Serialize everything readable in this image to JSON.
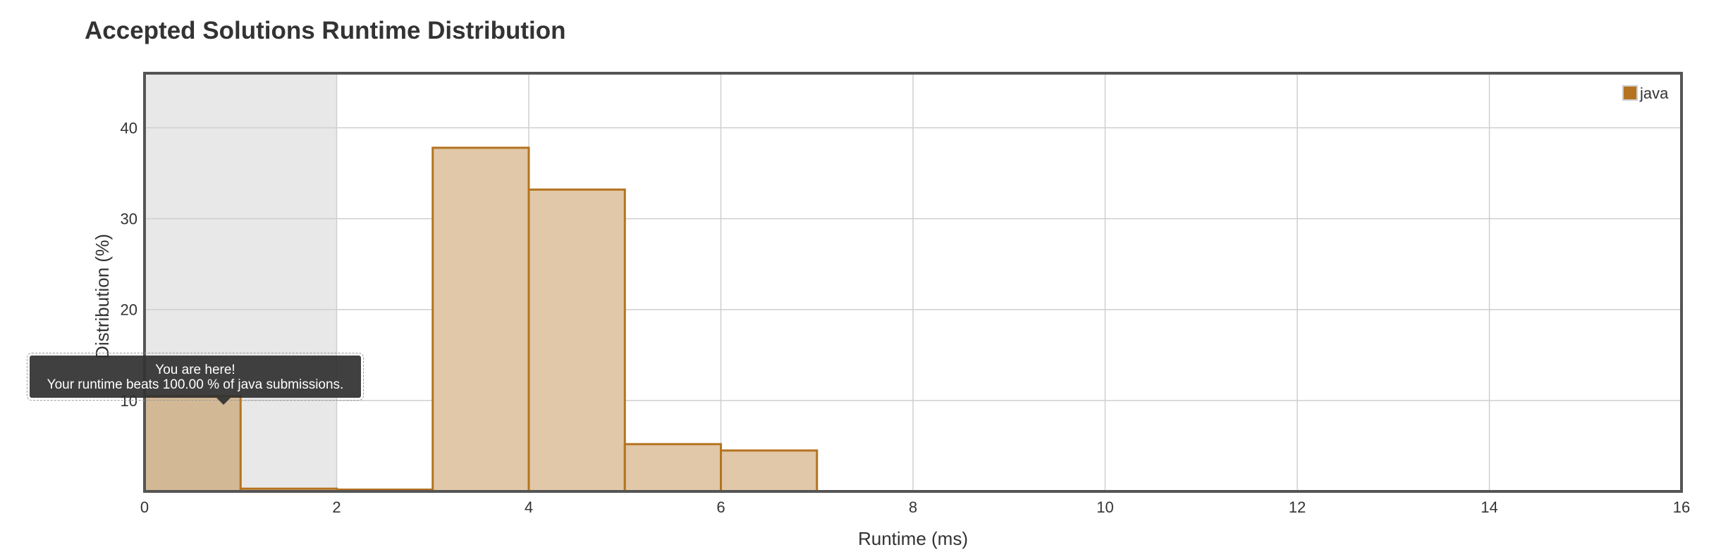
{
  "page": {
    "title": "Accepted Solutions Runtime Distribution"
  },
  "tooltip": {
    "line1": "You are here!",
    "line2": "Your runtime beats 100.00 % of java submissions."
  },
  "chart_data": {
    "type": "bar",
    "title": "Accepted Solutions Runtime Distribution",
    "xlabel": "Runtime (ms)",
    "ylabel": "Distribution (%)",
    "xlim": [
      0,
      16
    ],
    "ylim": [
      0,
      46
    ],
    "xticks": [
      0,
      2,
      4,
      6,
      8,
      10,
      12,
      14,
      16
    ],
    "yticks": [
      10,
      20,
      30,
      40
    ],
    "grid": true,
    "legend": {
      "position": "top-right",
      "entries": [
        "java"
      ]
    },
    "highlight_range": [
      0,
      2
    ],
    "series": [
      {
        "name": "java",
        "color": "#b5731f",
        "fill": "#e0c8a8",
        "bins": [
          {
            "x0": 0,
            "x1": 1,
            "value": 10.5
          },
          {
            "x0": 1,
            "x1": 2,
            "value": 0.3
          },
          {
            "x0": 2,
            "x1": 3,
            "value": 0.2
          },
          {
            "x0": 3,
            "x1": 4,
            "value": 37.8
          },
          {
            "x0": 4,
            "x1": 5,
            "value": 33.2
          },
          {
            "x0": 5,
            "x1": 6,
            "value": 5.2
          },
          {
            "x0": 6,
            "x1": 7,
            "value": 4.5
          }
        ]
      }
    ]
  }
}
